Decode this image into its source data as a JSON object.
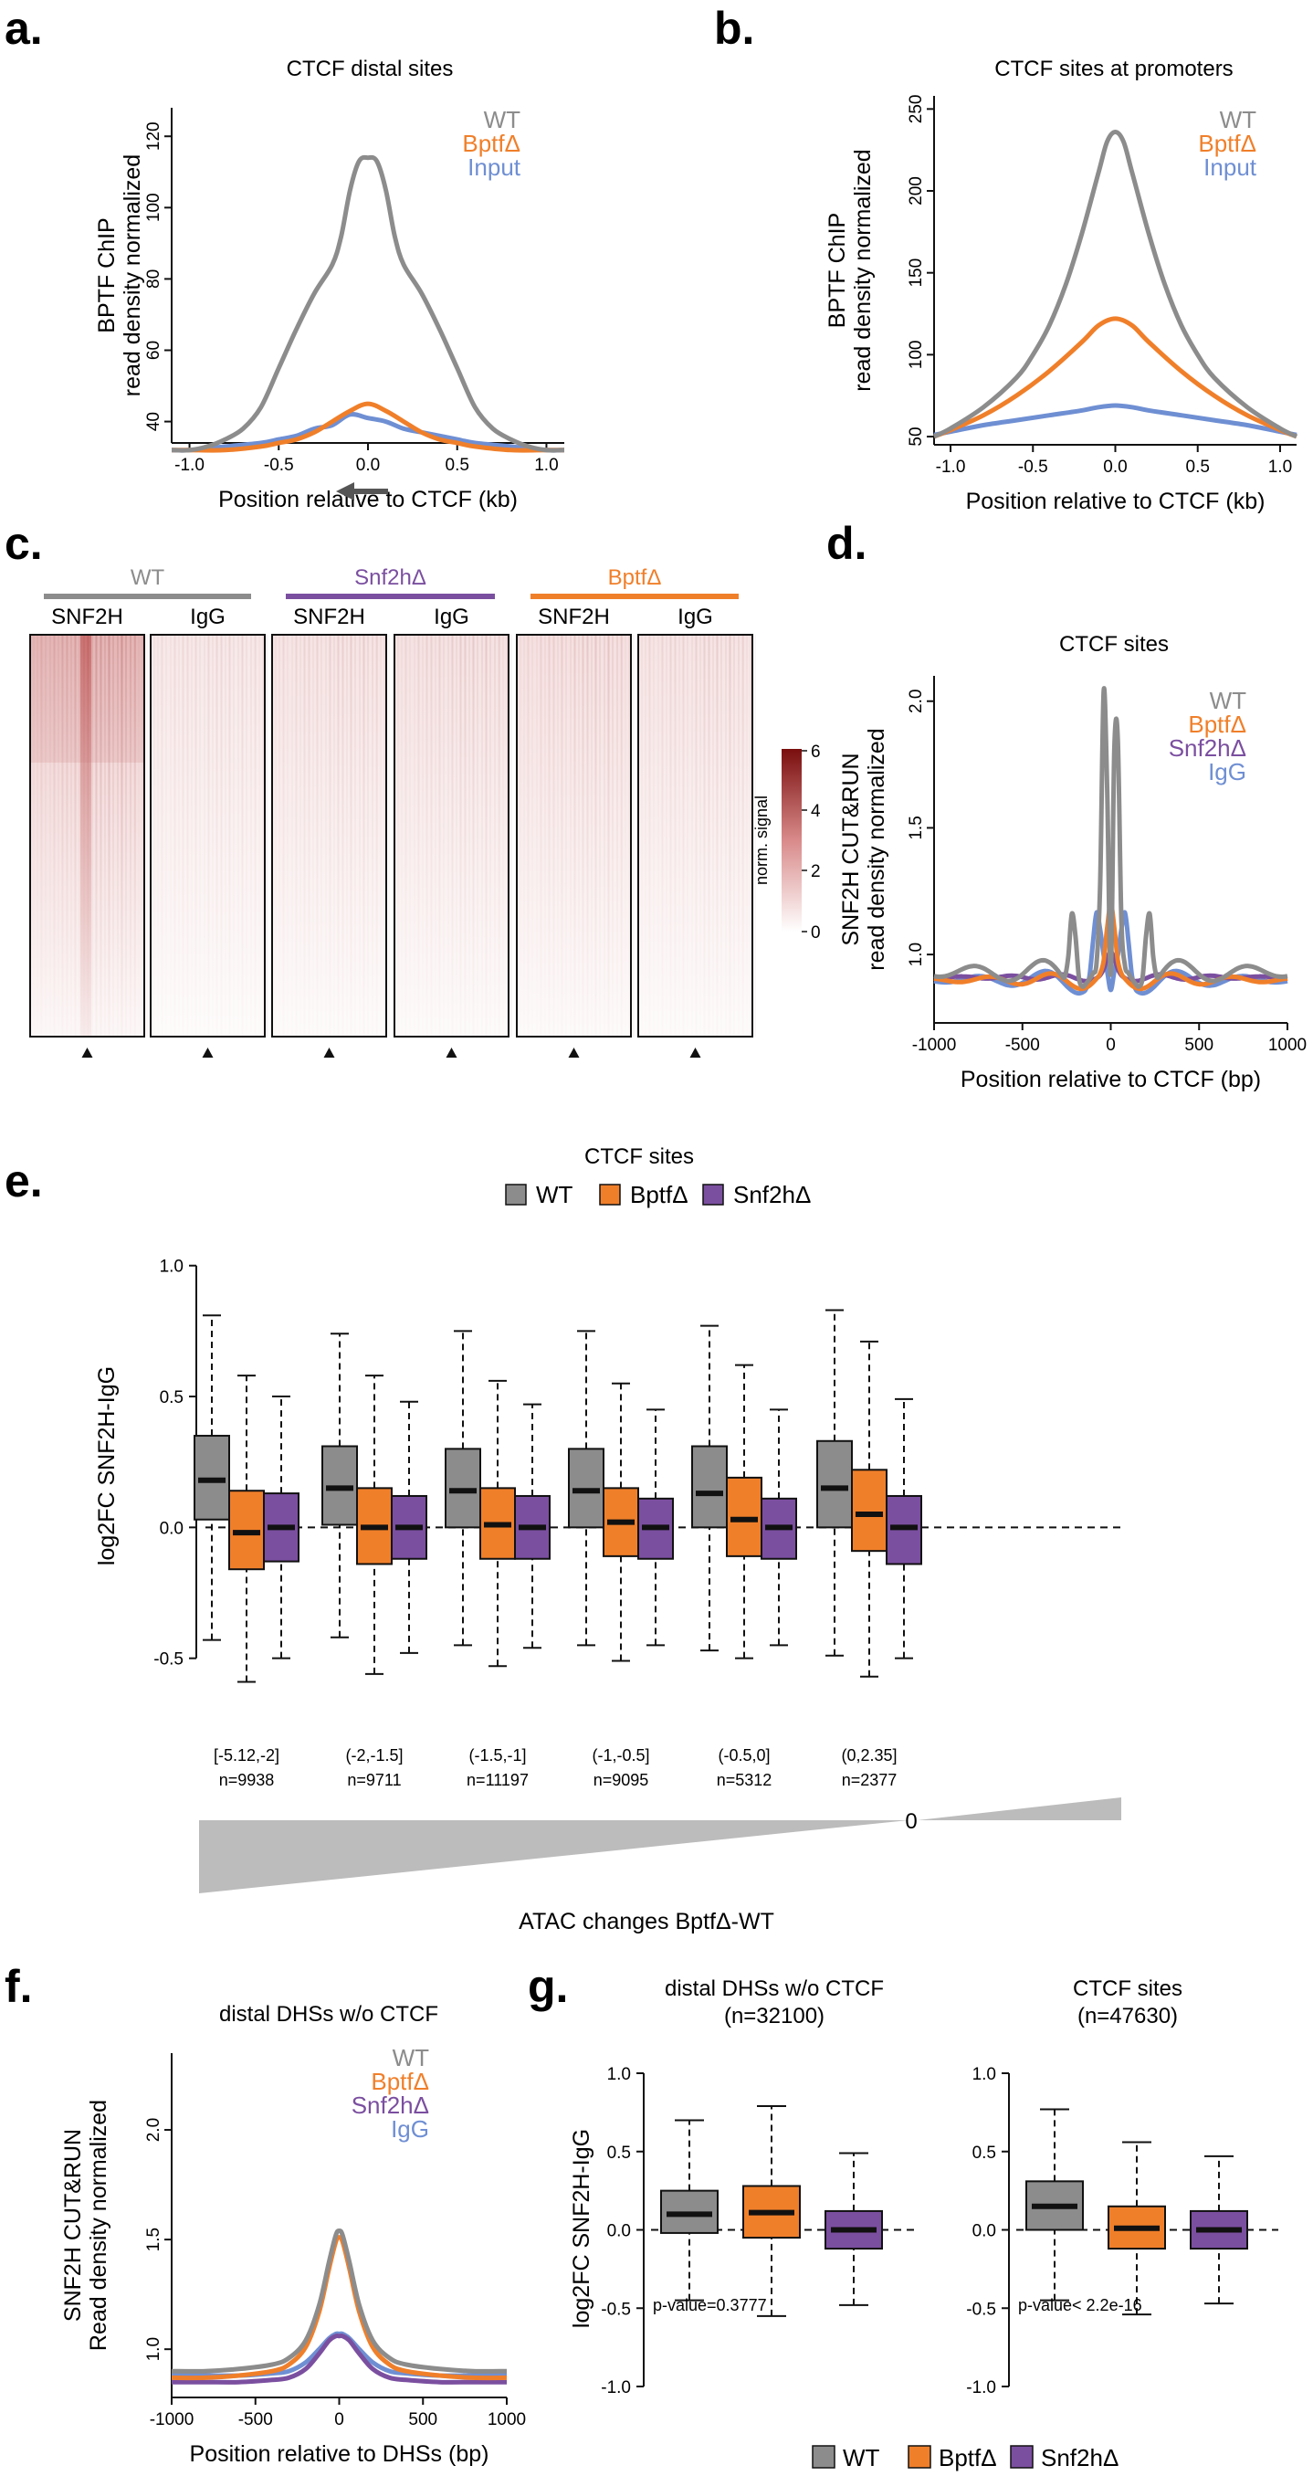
{
  "colors": {
    "wt": "#8c8c8c",
    "bptf": "#f07f2a",
    "snf2h": "#7b4fa0",
    "input": "#6f8fd3",
    "igg": "#6f8fd3",
    "heat": "#a52a2a"
  },
  "chart_data": [
    {
      "id": "a",
      "type": "line",
      "panel": "a.",
      "title": "CTCF distal sites",
      "xlabel": "Position relative to CTCF (kb)",
      "ylabel": [
        "BPTF ChIP",
        "read density normalized"
      ],
      "xlim": [
        -1.1,
        1.1
      ],
      "ylim": [
        34,
        128
      ],
      "xticks": [
        -1.0,
        -0.5,
        0.0,
        0.5,
        1.0
      ],
      "xtick_labels": [
        "-1.0",
        "-0.5",
        "0.0",
        "0.5",
        "1.0"
      ],
      "yticks": [
        40,
        60,
        80,
        100,
        120
      ],
      "ytick_labels": [
        "40",
        "60",
        "80",
        "100",
        "120"
      ],
      "legend": [
        "WT",
        "BptfΔ",
        "Input"
      ],
      "series": [
        {
          "name": "WT",
          "color": "#8c8c8c",
          "x": [
            -1.1,
            -1.0,
            -0.9,
            -0.8,
            -0.7,
            -0.6,
            -0.5,
            -0.4,
            -0.3,
            -0.2,
            -0.15,
            -0.1,
            -0.05,
            0,
            0.05,
            0.1,
            0.15,
            0.2,
            0.3,
            0.4,
            0.5,
            0.6,
            0.7,
            0.8,
            0.9,
            1.0,
            1.1
          ],
          "y": [
            32,
            32,
            33,
            35,
            38,
            44,
            55,
            66,
            76,
            84,
            92,
            105,
            113,
            114,
            113,
            105,
            92,
            84,
            76,
            66,
            55,
            44,
            38,
            35,
            33,
            32,
            32
          ]
        },
        {
          "name": "BptfΔ",
          "color": "#f07f2a",
          "x": [
            -1.1,
            -1.0,
            -0.8,
            -0.6,
            -0.5,
            -0.4,
            -0.3,
            -0.2,
            -0.1,
            0,
            0.1,
            0.2,
            0.3,
            0.4,
            0.5,
            0.6,
            0.8,
            1.0,
            1.1
          ],
          "y": [
            32,
            32,
            32,
            33,
            34,
            35,
            37,
            40,
            43,
            45,
            43,
            40,
            37,
            35,
            34,
            33,
            32,
            32,
            32
          ]
        },
        {
          "name": "Input",
          "color": "#6f8fd3",
          "x": [
            -1.1,
            -1.0,
            -0.8,
            -0.6,
            -0.5,
            -0.4,
            -0.3,
            -0.2,
            -0.1,
            0,
            0.1,
            0.2,
            0.3,
            0.4,
            0.5,
            0.6,
            0.8,
            1.0,
            1.1
          ],
          "y": [
            32,
            32,
            33,
            34,
            35,
            36,
            38,
            39,
            42,
            41,
            40,
            38,
            37,
            36,
            35,
            34,
            33,
            32,
            32
          ]
        }
      ]
    },
    {
      "id": "b",
      "type": "line",
      "panel": "b.",
      "title": "CTCF sites at promoters",
      "xlabel": "Position relative to CTCF (kb)",
      "ylabel": [
        "BPTF ChIP",
        "read density normalized"
      ],
      "xlim": [
        -1.1,
        1.1
      ],
      "ylim": [
        45,
        258
      ],
      "xticks": [
        -1.0,
        -0.5,
        0.0,
        0.5,
        1.0
      ],
      "xtick_labels": [
        "-1.0",
        "-0.5",
        "0.0",
        "0.5",
        "1.0"
      ],
      "yticks": [
        50,
        100,
        150,
        200,
        250
      ],
      "ytick_labels": [
        "50",
        "100",
        "150",
        "200",
        "250"
      ],
      "legend": [
        "WT",
        "BptfΔ",
        "Input"
      ],
      "series": [
        {
          "name": "WT",
          "color": "#8c8c8c",
          "x": [
            -1.1,
            -1.0,
            -0.8,
            -0.6,
            -0.5,
            -0.4,
            -0.3,
            -0.2,
            -0.1,
            -0.05,
            0,
            0.05,
            0.1,
            0.2,
            0.3,
            0.4,
            0.5,
            0.6,
            0.8,
            1.0,
            1.1
          ],
          "y": [
            50,
            55,
            68,
            86,
            100,
            118,
            143,
            175,
            212,
            230,
            236,
            230,
            212,
            175,
            143,
            118,
            100,
            86,
            68,
            55,
            50
          ]
        },
        {
          "name": "BptfΔ",
          "color": "#f07f2a",
          "x": [
            -1.1,
            -1.0,
            -0.8,
            -0.6,
            -0.4,
            -0.2,
            -0.1,
            0,
            0.1,
            0.2,
            0.4,
            0.6,
            0.8,
            1.0,
            1.1
          ],
          "y": [
            50,
            54,
            63,
            75,
            90,
            108,
            118,
            122,
            118,
            108,
            90,
            75,
            63,
            54,
            50
          ]
        },
        {
          "name": "Input",
          "color": "#6f8fd3",
          "x": [
            -1.1,
            -1.0,
            -0.8,
            -0.6,
            -0.4,
            -0.2,
            -0.1,
            0,
            0.1,
            0.2,
            0.4,
            0.6,
            0.8,
            1.0,
            1.1
          ],
          "y": [
            51,
            53,
            57,
            60,
            63,
            66,
            68,
            69,
            68,
            66,
            63,
            60,
            57,
            53,
            51
          ]
        }
      ]
    },
    {
      "id": "c",
      "type": "heatmap",
      "panel": "c.",
      "groups": [
        "WT",
        "Snf2hΔ",
        "BptfΔ"
      ],
      "group_colors": [
        "#8c8c8c",
        "#7b4fa0",
        "#f07f2a"
      ],
      "columns": [
        "SNF2H",
        "IgG",
        "SNF2H",
        "IgG",
        "SNF2H",
        "IgG"
      ],
      "column_intensity": [
        0.95,
        0.22,
        0.32,
        0.38,
        0.45,
        0.32
      ],
      "colorbar_label": "norm. signal",
      "colorbar_ticks": [
        "0",
        "2",
        "4",
        "6"
      ]
    },
    {
      "id": "d",
      "type": "line",
      "panel": "d.",
      "title": "CTCF sites",
      "xlabel": "Position relative to CTCF (bp)",
      "ylabel": [
        "SNF2H CUT&RUN",
        "read density normalized"
      ],
      "xlim": [
        -1000,
        1000
      ],
      "ylim": [
        0.73,
        2.1
      ],
      "xticks": [
        -1000,
        -500,
        0,
        500,
        1000
      ],
      "xtick_labels": [
        "-1000",
        "-500",
        "0",
        "500",
        "1000"
      ],
      "yticks": [
        1.0,
        1.5,
        2.0
      ],
      "ytick_labels": [
        "1.0",
        "1.5",
        "2.0"
      ],
      "legend": [
        "WT",
        "BptfΔ",
        "Snf2hΔ",
        "IgG"
      ]
    },
    {
      "id": "e",
      "type": "box",
      "panel": "e.",
      "title": "CTCF sites",
      "ylabel": "log2FC SNF2H-IgG",
      "ylim": [
        -0.55,
        1.02
      ],
      "yticks": [
        -0.5,
        0.0,
        0.5,
        1.0
      ],
      "ytick_labels": [
        "-0.5",
        "0.0",
        "0.5",
        "1.0"
      ],
      "legend": [
        "WT",
        "BptfΔ",
        "Snf2hΔ"
      ],
      "categories": [
        "[-5.12,-2]",
        "(-2,-1.5]",
        "(-1.5,-1]",
        "(-1,-0.5]",
        "(-0.5,0]",
        "(0,2.35]"
      ],
      "counts": [
        "n=9938",
        "n=9711",
        "n=11197",
        "n=9095",
        "n=5312",
        "n=2377"
      ],
      "wedge_label": "ATAC changes BptfΔ-WT",
      "wedge_zero": "0",
      "series": [
        {
          "name": "WT",
          "color": "#8c8c8c",
          "boxes": [
            [
              -0.43,
              0.03,
              0.18,
              0.35,
              0.81
            ],
            [
              -0.42,
              0.01,
              0.15,
              0.31,
              0.74
            ],
            [
              -0.45,
              0.0,
              0.14,
              0.3,
              0.75
            ],
            [
              -0.45,
              0.0,
              0.14,
              0.3,
              0.75
            ],
            [
              -0.47,
              0.0,
              0.13,
              0.31,
              0.77
            ],
            [
              -0.49,
              0.0,
              0.15,
              0.33,
              0.83
            ]
          ]
        },
        {
          "name": "BptfΔ",
          "color": "#f07f2a",
          "boxes": [
            [
              -0.59,
              -0.16,
              -0.02,
              0.14,
              0.58
            ],
            [
              -0.56,
              -0.14,
              0.0,
              0.15,
              0.58
            ],
            [
              -0.53,
              -0.12,
              0.01,
              0.15,
              0.56
            ],
            [
              -0.51,
              -0.11,
              0.02,
              0.15,
              0.55
            ],
            [
              -0.5,
              -0.11,
              0.03,
              0.19,
              0.62
            ],
            [
              -0.57,
              -0.09,
              0.05,
              0.22,
              0.71
            ]
          ]
        },
        {
          "name": "Snf2hΔ",
          "color": "#7b4fa0",
          "boxes": [
            [
              -0.5,
              -0.13,
              0.0,
              0.13,
              0.5
            ],
            [
              -0.48,
              -0.12,
              0.0,
              0.12,
              0.48
            ],
            [
              -0.46,
              -0.12,
              0.0,
              0.12,
              0.47
            ],
            [
              -0.45,
              -0.12,
              0.0,
              0.11,
              0.45
            ],
            [
              -0.45,
              -0.12,
              0.0,
              0.11,
              0.45
            ],
            [
              -0.5,
              -0.14,
              0.0,
              0.12,
              0.49
            ]
          ]
        }
      ]
    },
    {
      "id": "f",
      "type": "line",
      "panel": "f.",
      "title": "distal DHSs w/o CTCF",
      "xlabel": "Position relative to DHSs (bp)",
      "ylabel": [
        "SNF2H CUT&RUN",
        "Read density normalized"
      ],
      "xlim": [
        -1000,
        1000
      ],
      "ylim": [
        0.78,
        2.35
      ],
      "xticks": [
        -1000,
        -500,
        0,
        500,
        1000
      ],
      "xtick_labels": [
        "-1000",
        "-500",
        "0",
        "500",
        "1000"
      ],
      "yticks": [
        1.0,
        1.5,
        2.0
      ],
      "ytick_labels": [
        "1.0",
        "1.5",
        "2.0"
      ],
      "legend": [
        "WT",
        "BptfΔ",
        "Snf2hΔ",
        "IgG"
      ],
      "series": [
        {
          "name": "WT",
          "color": "#8c8c8c",
          "x": [
            -1000,
            -800,
            -600,
            -400,
            -300,
            -200,
            -120,
            -60,
            -20,
            0,
            20,
            60,
            120,
            200,
            300,
            400,
            600,
            800,
            1000
          ],
          "y": [
            0.9,
            0.9,
            0.91,
            0.93,
            0.96,
            1.04,
            1.2,
            1.4,
            1.52,
            1.54,
            1.52,
            1.4,
            1.2,
            1.04,
            0.96,
            0.93,
            0.91,
            0.9,
            0.9
          ]
        },
        {
          "name": "BptfΔ",
          "color": "#f07f2a",
          "x": [
            -1000,
            -800,
            -600,
            -400,
            -300,
            -200,
            -120,
            -60,
            -20,
            0,
            20,
            60,
            120,
            200,
            300,
            400,
            600,
            800,
            1000
          ],
          "y": [
            0.87,
            0.87,
            0.88,
            0.9,
            0.93,
            1.01,
            1.17,
            1.37,
            1.49,
            1.51,
            1.49,
            1.37,
            1.17,
            1.01,
            0.93,
            0.9,
            0.88,
            0.87,
            0.87
          ]
        },
        {
          "name": "Snf2hΔ",
          "color": "#7b4fa0",
          "x": [
            -1000,
            -800,
            -600,
            -400,
            -300,
            -200,
            -120,
            -60,
            -20,
            0,
            20,
            60,
            120,
            200,
            300,
            400,
            600,
            800,
            1000
          ],
          "y": [
            0.85,
            0.85,
            0.85,
            0.86,
            0.87,
            0.91,
            0.98,
            1.04,
            1.06,
            1.06,
            1.06,
            1.04,
            0.98,
            0.91,
            0.87,
            0.86,
            0.85,
            0.85,
            0.85
          ]
        },
        {
          "name": "IgG",
          "color": "#6f8fd3",
          "x": [
            -1000,
            -800,
            -600,
            -400,
            -300,
            -200,
            -120,
            -60,
            -20,
            0,
            20,
            60,
            120,
            200,
            300,
            400,
            600,
            800,
            1000
          ],
          "y": [
            0.88,
            0.88,
            0.88,
            0.89,
            0.9,
            0.94,
            1.0,
            1.05,
            1.07,
            1.07,
            1.07,
            1.05,
            1.0,
            0.94,
            0.9,
            0.89,
            0.88,
            0.88,
            0.88
          ]
        }
      ]
    },
    {
      "id": "g1",
      "type": "box",
      "panel": "g.",
      "title": [
        "distal DHSs w/o CTCF",
        "(n=32100)"
      ],
      "ylabel": "log2FC SNF2H-IgG",
      "ylim": [
        -1.0,
        1.0
      ],
      "yticks": [
        -1.0,
        -0.5,
        0.0,
        0.5,
        1.0
      ],
      "ytick_labels": [
        "-1.0",
        "-0.5",
        "0.0",
        "0.5",
        "1.0"
      ],
      "pvalue": "p-value=0.3777",
      "series": [
        {
          "name": "WT",
          "color": "#8c8c8c",
          "box": [
            -0.45,
            -0.02,
            0.1,
            0.25,
            0.7
          ]
        },
        {
          "name": "BptfΔ",
          "color": "#f07f2a",
          "box": [
            -0.55,
            -0.05,
            0.11,
            0.28,
            0.79
          ]
        },
        {
          "name": "Snf2hΔ",
          "color": "#7b4fa0",
          "box": [
            -0.48,
            -0.12,
            0.0,
            0.12,
            0.49
          ]
        }
      ]
    },
    {
      "id": "g2",
      "type": "box",
      "title": [
        "CTCF sites",
        "(n=47630)"
      ],
      "ylim": [
        -1.0,
        1.0
      ],
      "yticks": [
        -1.0,
        -0.5,
        0.0,
        0.5,
        1.0
      ],
      "ytick_labels": [
        "-1.0",
        "-0.5",
        "0.0",
        "0.5",
        "1.0"
      ],
      "pvalue": "p-value< 2.2e-16",
      "legend": [
        "WT",
        "BptfΔ",
        "Snf2hΔ"
      ],
      "series": [
        {
          "name": "WT",
          "color": "#8c8c8c",
          "box": [
            -0.45,
            0.0,
            0.15,
            0.31,
            0.77
          ]
        },
        {
          "name": "BptfΔ",
          "color": "#f07f2a",
          "box": [
            -0.54,
            -0.12,
            0.01,
            0.15,
            0.56
          ]
        },
        {
          "name": "Snf2hΔ",
          "color": "#7b4fa0",
          "box": [
            -0.47,
            -0.12,
            0.0,
            0.12,
            0.47
          ]
        }
      ]
    }
  ]
}
